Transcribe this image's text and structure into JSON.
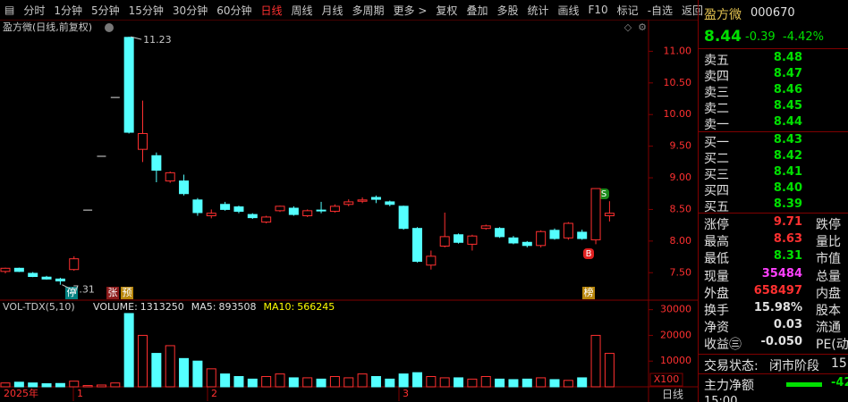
{
  "toolbar": {
    "items": [
      "分时",
      "1分钟",
      "5分钟",
      "15分钟",
      "30分钟",
      "60分钟",
      "日线",
      "周线",
      "月线",
      "多周期",
      "更多 >",
      "复权",
      "叠加",
      "多股",
      "统计",
      "画线",
      "F10",
      "标记",
      "-自选",
      "返回"
    ],
    "active": "日线"
  },
  "chart_data": [
    {
      "type": "candlestick",
      "title": "盈方微(日线,前复权)",
      "up_color": "#ff3030",
      "down_color": "#54ffff",
      "flat_color": "#e0e0e0",
      "candles": [
        {
          "open": 7.52,
          "high": 7.58,
          "low": 7.49,
          "close": 7.57
        },
        {
          "open": 7.57,
          "high": 7.58,
          "low": 7.51,
          "close": 7.52
        },
        {
          "open": 7.49,
          "high": 7.51,
          "low": 7.43,
          "close": 7.44
        },
        {
          "open": 7.43,
          "high": 7.45,
          "low": 7.39,
          "close": 7.4
        },
        {
          "open": 7.4,
          "high": 7.42,
          "low": 7.31,
          "close": 7.37
        },
        {
          "open": 7.55,
          "high": 7.76,
          "low": 7.53,
          "close": 7.72
        },
        {
          "open": 8.49,
          "high": 8.49,
          "low": 8.49,
          "close": 8.49
        },
        {
          "open": 9.34,
          "high": 9.34,
          "low": 9.34,
          "close": 9.34
        },
        {
          "open": 10.27,
          "high": 10.27,
          "low": 10.27,
          "close": 10.27
        },
        {
          "open": 11.22,
          "high": 11.23,
          "low": 9.7,
          "close": 9.72
        },
        {
          "open": 9.45,
          "high": 10.22,
          "low": 9.25,
          "close": 9.7
        },
        {
          "open": 9.35,
          "high": 9.4,
          "low": 8.93,
          "close": 9.12
        },
        {
          "open": 8.95,
          "high": 9.1,
          "low": 8.92,
          "close": 9.08
        },
        {
          "open": 8.95,
          "high": 9.05,
          "low": 8.72,
          "close": 8.75
        },
        {
          "open": 8.65,
          "high": 8.68,
          "low": 8.4,
          "close": 8.45
        },
        {
          "open": 8.4,
          "high": 8.5,
          "low": 8.36,
          "close": 8.44
        },
        {
          "open": 8.58,
          "high": 8.62,
          "low": 8.48,
          "close": 8.5
        },
        {
          "open": 8.54,
          "high": 8.56,
          "low": 8.44,
          "close": 8.47
        },
        {
          "open": 8.42,
          "high": 8.44,
          "low": 8.35,
          "close": 8.37
        },
        {
          "open": 8.3,
          "high": 8.4,
          "low": 8.28,
          "close": 8.38
        },
        {
          "open": 8.48,
          "high": 8.56,
          "low": 8.46,
          "close": 8.55
        },
        {
          "open": 8.52,
          "high": 8.55,
          "low": 8.4,
          "close": 8.42
        },
        {
          "open": 8.4,
          "high": 8.5,
          "low": 8.38,
          "close": 8.48
        },
        {
          "open": 8.49,
          "high": 8.62,
          "low": 8.44,
          "close": 8.48
        },
        {
          "open": 8.47,
          "high": 8.58,
          "low": 8.45,
          "close": 8.55
        },
        {
          "open": 8.58,
          "high": 8.66,
          "low": 8.55,
          "close": 8.62
        },
        {
          "open": 8.63,
          "high": 8.69,
          "low": 8.6,
          "close": 8.65
        },
        {
          "open": 8.69,
          "high": 8.72,
          "low": 8.6,
          "close": 8.66
        },
        {
          "open": 8.62,
          "high": 8.64,
          "low": 8.55,
          "close": 8.58
        },
        {
          "open": 8.55,
          "high": 8.56,
          "low": 8.18,
          "close": 8.2
        },
        {
          "open": 8.2,
          "high": 8.22,
          "low": 7.66,
          "close": 7.68
        },
        {
          "open": 7.62,
          "high": 7.85,
          "low": 7.55,
          "close": 7.76
        },
        {
          "open": 7.92,
          "high": 8.45,
          "low": 7.9,
          "close": 8.07
        },
        {
          "open": 8.1,
          "high": 8.12,
          "low": 7.96,
          "close": 7.98
        },
        {
          "open": 7.95,
          "high": 8.1,
          "low": 7.85,
          "close": 8.08
        },
        {
          "open": 8.2,
          "high": 8.26,
          "low": 8.18,
          "close": 8.24
        },
        {
          "open": 8.2,
          "high": 8.22,
          "low": 8.05,
          "close": 8.07
        },
        {
          "open": 8.05,
          "high": 8.08,
          "low": 7.95,
          "close": 7.97
        },
        {
          "open": 7.98,
          "high": 8.0,
          "low": 7.9,
          "close": 7.93
        },
        {
          "open": 7.93,
          "high": 8.17,
          "low": 7.9,
          "close": 8.15
        },
        {
          "open": 8.17,
          "high": 8.2,
          "low": 8.02,
          "close": 8.04
        },
        {
          "open": 8.05,
          "high": 8.3,
          "low": 8.02,
          "close": 8.28
        },
        {
          "open": 8.14,
          "high": 8.18,
          "low": 8.02,
          "close": 8.04
        },
        {
          "open": 8.02,
          "high": 8.83,
          "low": 7.95,
          "close": 8.83
        },
        {
          "open": 8.4,
          "high": 8.63,
          "low": 8.31,
          "close": 8.44
        }
      ],
      "ylim": [
        7.08,
        11.5
      ],
      "yticks": [
        {
          "value": 7.5,
          "label": "7.50"
        },
        {
          "value": 8,
          "label": "8.00"
        },
        {
          "value": 8.5,
          "label": "8.50"
        },
        {
          "value": 9,
          "label": "9.00"
        },
        {
          "value": 9.5,
          "label": "9.50"
        },
        {
          "value": 10,
          "label": "10.00"
        },
        {
          "value": 10.5,
          "label": "10.50"
        },
        {
          "value": 11,
          "label": "11.00"
        }
      ],
      "markers": [
        "停",
        "张",
        "预",
        "榜",
        "B",
        "S"
      ]
    },
    {
      "type": "bar",
      "title": "VOL-TDX(5,10)",
      "stats": [
        {
          "name": "VOLUME:",
          "value": "1313250",
          "color": "#e0e0e0"
        },
        {
          "name": "MA5:",
          "value": "893508",
          "color": "#e0e0e0"
        },
        {
          "name": "MA10:",
          "value": "566245",
          "color": "#ffff00"
        }
      ],
      "values": [
        1500,
        1800,
        1500,
        1200,
        1300,
        2200,
        500,
        700,
        1500,
        28500,
        20000,
        13000,
        16000,
        11000,
        10000,
        7000,
        5000,
        4000,
        3000,
        4000,
        5000,
        3500,
        3500,
        3000,
        4000,
        3500,
        5000,
        4000,
        3000,
        5000,
        5500,
        4000,
        3500,
        3500,
        3000,
        4000,
        3000,
        2800,
        3000,
        3500,
        2800,
        2500,
        3500,
        20000,
        13000
      ],
      "ylim": [
        0,
        33000
      ],
      "yticks": [
        10000,
        20000,
        30000
      ],
      "x_labels": [
        "2025年",
        "1",
        "2",
        "3"
      ],
      "scale_label": "X100",
      "period_label": "日线"
    }
  ],
  "quote": {
    "name": "盈方微",
    "code": "000670",
    "price": "8.44",
    "change": "-0.39",
    "change_pct": "-4.42%",
    "sell": [
      {
        "label": "卖五",
        "price": "8.48"
      },
      {
        "label": "卖四",
        "price": "8.47"
      },
      {
        "label": "卖三",
        "price": "8.46"
      },
      {
        "label": "卖二",
        "price": "8.45"
      },
      {
        "label": "卖一",
        "price": "8.44"
      }
    ],
    "buy": [
      {
        "label": "买一",
        "price": "8.43"
      },
      {
        "label": "买二",
        "price": "8.42"
      },
      {
        "label": "买三",
        "price": "8.41"
      },
      {
        "label": "买四",
        "price": "8.40"
      },
      {
        "label": "买五",
        "price": "8.39"
      }
    ],
    "stats": [
      {
        "label": "涨停",
        "value": "9.71",
        "label2": "跌停",
        "color": "#ff3030"
      },
      {
        "label": "最高",
        "value": "8.63",
        "label2": "量比",
        "color": "#ff3030"
      },
      {
        "label": "最低",
        "value": "8.31",
        "label2": "市值",
        "color": "#00e000"
      },
      {
        "label": "现量",
        "value": "35484",
        "label2": "总量",
        "color": "#ff40ff"
      },
      {
        "label": "外盘",
        "value": "658497",
        "label2": "内盘",
        "color": "#ff3030"
      },
      {
        "label": "换手",
        "value": "15.98%",
        "label2": "股本",
        "color": "#e0e0e0"
      },
      {
        "label": "净资",
        "value": "0.03",
        "label2": "流通",
        "color": "#e0e0e0"
      },
      {
        "label": "收益㊂",
        "value": "-0.050",
        "label2": "PE(动",
        "color": "#e0e0e0"
      }
    ],
    "status_label": "交易状态:",
    "status": "闭市阶段",
    "status_time": "15:",
    "flow_label": "主力净额",
    "flow_value": "-42",
    "last_time": "15:00"
  }
}
